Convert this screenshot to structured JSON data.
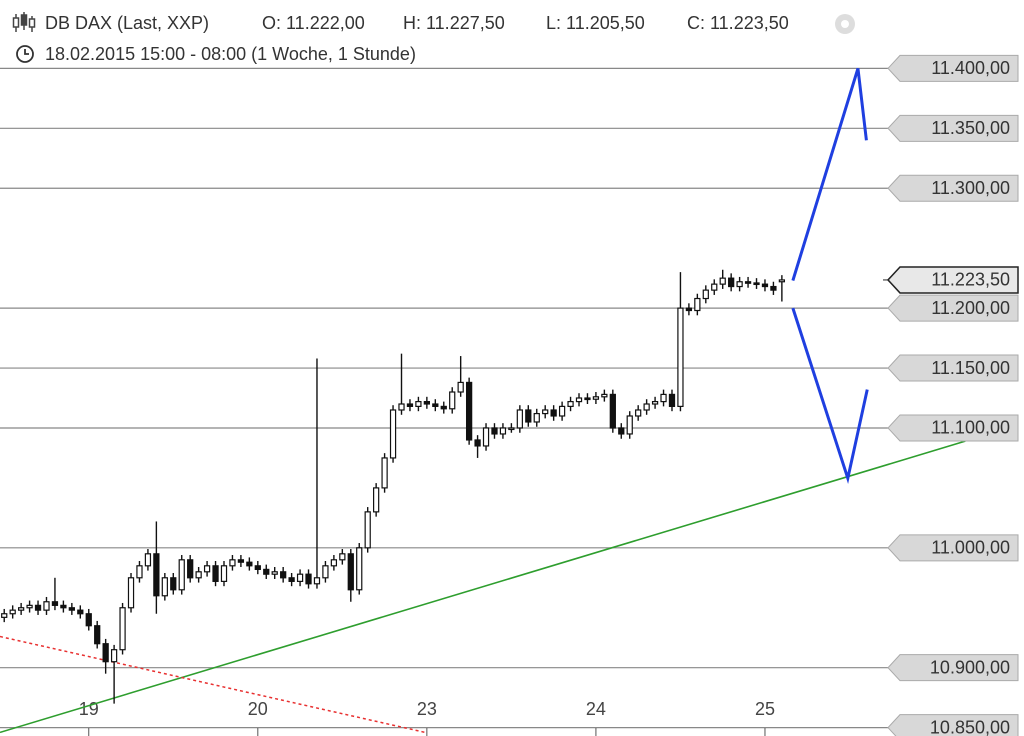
{
  "header": {
    "title": "DB DAX (Last, XXP)",
    "open": "O: 11.222,00",
    "high": "H: 11.227,50",
    "low": "L: 11.205,50",
    "close": "C: 11.223,50",
    "period": "18.02.2015 15:00 - 08:00 (1 Woche, 1 Stunde)"
  },
  "chart_data": {
    "type": "candlestick",
    "x": [
      0,
      1,
      2,
      3,
      4,
      5,
      6,
      7,
      8,
      9,
      10,
      11,
      12,
      13,
      14,
      15,
      16,
      17,
      18,
      19,
      20,
      21,
      22,
      23,
      24,
      25,
      26,
      27,
      28,
      29,
      30,
      31,
      32,
      33,
      34,
      35,
      36,
      37,
      38,
      39,
      40,
      41,
      42,
      43,
      44,
      45,
      46,
      47,
      48,
      49,
      50,
      51,
      52,
      53,
      54,
      55,
      56,
      57,
      58,
      59,
      60,
      61,
      62,
      63,
      64,
      65,
      66,
      67,
      68,
      69,
      70,
      71,
      72,
      73,
      74,
      75,
      76,
      77,
      78,
      79,
      80,
      81,
      82,
      83,
      84,
      85,
      86,
      87,
      88,
      89,
      90,
      91,
      92
    ],
    "open": [
      10942,
      10945,
      10948,
      10950,
      10952,
      10948,
      10955,
      10952,
      10950,
      10948,
      10945,
      10935,
      10920,
      10905,
      10915,
      10950,
      10975,
      10985,
      10995,
      10960,
      10975,
      10965,
      10990,
      10975,
      10980,
      10985,
      10972,
      10985,
      10990,
      10988,
      10985,
      10982,
      10978,
      10980,
      10975,
      10972,
      10978,
      10970,
      10975,
      10985,
      10990,
      10995,
      10965,
      11000,
      11030,
      11050,
      11075,
      11115,
      11120,
      11118,
      11122,
      11120,
      11118,
      11116,
      11130,
      11138,
      11090,
      11085,
      11100,
      11095,
      11100,
      11100,
      11115,
      11105,
      11112,
      11115,
      11110,
      11118,
      11122,
      11125,
      11124,
      11126,
      11128,
      11100,
      11095,
      11110,
      11115,
      11120,
      11122,
      11128,
      11118,
      11200,
      11198,
      11208,
      11215,
      11220,
      11225,
      11218,
      11222,
      11221,
      11220,
      11218,
      11222
    ],
    "high": [
      10949,
      10952,
      10954,
      10956,
      10956,
      10959,
      10975,
      10956,
      10954,
      10952,
      10949,
      10939,
      10924,
      10919,
      10954,
      10979,
      10989,
      10999,
      11022,
      10979,
      10979,
      10994,
      10994,
      10984,
      10989,
      10989,
      10989,
      10994,
      10994,
      10992,
      10989,
      10986,
      10984,
      10984,
      10979,
      10982,
      10982,
      11158,
      10989,
      10994,
      10999,
      10999,
      11004,
      11034,
      11054,
      11079,
      11119,
      11162,
      11124,
      11126,
      11126,
      11124,
      11122,
      11134,
      11160,
      11142,
      11094,
      11104,
      11104,
      11104,
      11104,
      11119,
      11119,
      11116,
      11119,
      11119,
      11122,
      11126,
      11129,
      11129,
      11130,
      11132,
      11132,
      11104,
      11114,
      11119,
      11124,
      11126,
      11132,
      11132,
      11230,
      11204,
      11212,
      11219,
      11224,
      11232,
      11229,
      11226,
      11226,
      11225,
      11224,
      11222,
      11227.5
    ],
    "low": [
      10938,
      10941,
      10944,
      10946,
      10944,
      10944,
      10948,
      10946,
      10944,
      10941,
      10931,
      10916,
      10895,
      10870,
      10911,
      10946,
      10971,
      10981,
      10945,
      10956,
      10961,
      10961,
      10971,
      10971,
      10976,
      10968,
      10968,
      10981,
      10984,
      10981,
      10978,
      10974,
      10974,
      10971,
      10968,
      10968,
      10966,
      10966,
      10971,
      10981,
      10986,
      10955,
      10961,
      10996,
      11026,
      11046,
      11071,
      11111,
      11114,
      11114,
      11116,
      11114,
      11112,
      11112,
      11126,
      11086,
      11075,
      11081,
      11091,
      11091,
      11096,
      11096,
      11101,
      11101,
      11108,
      11106,
      11106,
      11114,
      11118,
      11120,
      11120,
      11122,
      11096,
      11091,
      11091,
      11106,
      11111,
      11116,
      11118,
      11114,
      11114,
      11194,
      11194,
      11204,
      11211,
      11216,
      11214,
      11214,
      11217,
      11216,
      11214,
      11211,
      11205.5
    ],
    "close": [
      10945,
      10948,
      10950,
      10952,
      10948,
      10955,
      10952,
      10950,
      10948,
      10945,
      10935,
      10920,
      10905,
      10915,
      10950,
      10975,
      10985,
      10995,
      10960,
      10975,
      10965,
      10990,
      10975,
      10980,
      10985,
      10972,
      10985,
      10990,
      10988,
      10985,
      10982,
      10978,
      10980,
      10975,
      10972,
      10978,
      10970,
      10975,
      10985,
      10990,
      10995,
      10965,
      11000,
      11030,
      11050,
      11075,
      11115,
      11120,
      11118,
      11122,
      11120,
      11118,
      11116,
      11130,
      11138,
      11090,
      11085,
      11100,
      11095,
      11100,
      11100,
      11115,
      11105,
      11112,
      11115,
      11110,
      11118,
      11122,
      11125,
      11124,
      11126,
      11128,
      11100,
      11095,
      11110,
      11115,
      11120,
      11122,
      11128,
      11118,
      11200,
      11198,
      11208,
      11215,
      11220,
      11225,
      11218,
      11222,
      11221,
      11220,
      11218,
      11215,
      11223.5
    ],
    "xlim": [
      -0.5,
      104.2
    ],
    "ylim": [
      10843,
      11402
    ],
    "xticks": [
      {
        "value": 10,
        "label": "19"
      },
      {
        "value": 30,
        "label": "20"
      },
      {
        "value": 50,
        "label": "23"
      },
      {
        "value": 70,
        "label": "24"
      },
      {
        "value": 90,
        "label": "25"
      }
    ],
    "yticks": [
      {
        "value": 10850,
        "label": "10.850,00"
      },
      {
        "value": 10900,
        "label": "10.900,00"
      },
      {
        "value": 11000,
        "label": "11.000,00"
      },
      {
        "value": 11100,
        "label": "11.100,00"
      },
      {
        "value": 11150,
        "label": "11.150,00"
      },
      {
        "value": 11200,
        "label": "11.200,00"
      },
      {
        "value": 11300,
        "label": "11.300,00"
      },
      {
        "value": 11350,
        "label": "11.350,00"
      },
      {
        "value": 11400,
        "label": "11.400,00"
      }
    ],
    "last_price": {
      "value": 11223.5,
      "label": "11.223,50"
    },
    "grid": true,
    "trendlines": [
      {
        "color": "#2e9e2e",
        "style": "solid",
        "x": [
          -0.5,
          113.7
        ],
        "y": [
          10846,
          11089
        ]
      },
      {
        "color": "#e83030",
        "style": "dotted",
        "x": [
          -0.5,
          49.8
        ],
        "y": [
          10926,
          10846
        ]
      },
      {
        "color": "#1f3fe0",
        "style": "solid",
        "x": [
          93.3,
          101,
          102
        ],
        "y": [
          11223,
          11400,
          11340
        ]
      },
      {
        "color": "#1f3fe0",
        "style": "solid",
        "x": [
          93.3,
          99.8,
          102.1
        ],
        "y": [
          11200,
          11058,
          11132
        ]
      }
    ]
  }
}
